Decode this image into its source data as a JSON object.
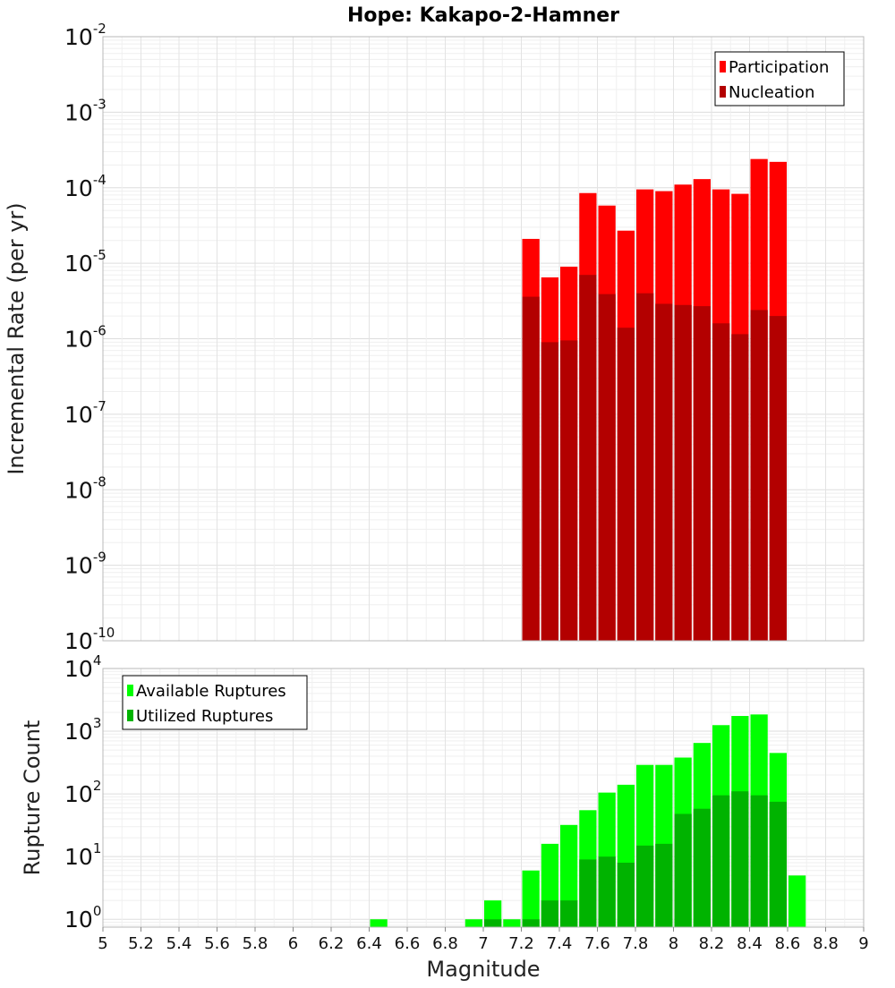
{
  "chart_data": [
    {
      "type": "bar",
      "title": "Hope: Kakapo-2-Hamner",
      "xlabel": "",
      "ylabel": "Incremental Rate (per yr)",
      "xlim": [
        5,
        9
      ],
      "ylim": [
        1e-10,
        0.01
      ],
      "yscale": "log",
      "grid": true,
      "legend_position": "top-right",
      "bar_width": 0.1,
      "x": [
        7.25,
        7.35,
        7.45,
        7.55,
        7.65,
        7.75,
        7.85,
        7.95,
        8.05,
        8.15,
        8.25,
        8.35,
        8.45,
        8.55
      ],
      "series": [
        {
          "name": "Participation",
          "color": "#ff0000",
          "values": [
            2.1e-05,
            6.5e-06,
            9e-06,
            8.5e-05,
            5.8e-05,
            2.7e-05,
            9.5e-05,
            9e-05,
            0.00011,
            0.00013,
            9.5e-05,
            8.3e-05,
            0.00024,
            0.00022
          ]
        },
        {
          "name": "Nucleation",
          "color": "#b30000",
          "values": [
            3.6e-06,
            9e-07,
            9.5e-07,
            7e-06,
            3.9e-06,
            1.4e-06,
            4e-06,
            2.9e-06,
            2.8e-06,
            2.7e-06,
            1.6e-06,
            1.15e-06,
            2.4e-06,
            2e-06
          ]
        }
      ]
    },
    {
      "type": "bar",
      "title": "",
      "xlabel": "Magnitude",
      "ylabel": "Rupture Count",
      "xlim": [
        5,
        9
      ],
      "ylim": [
        0.75,
        10000.0
      ],
      "yscale": "log",
      "grid": true,
      "legend_position": "top-left",
      "bar_width": 0.1,
      "xticks": [
        "5",
        "5.2",
        "5.4",
        "5.6",
        "5.8",
        "6",
        "6.2",
        "6.4",
        "6.6",
        "6.8",
        "7",
        "7.2",
        "7.4",
        "7.6",
        "7.8",
        "8",
        "8.2",
        "8.4",
        "8.6",
        "8.8",
        "9"
      ],
      "series": [
        {
          "name": "Available Ruptures",
          "color": "#00ff00",
          "x": [
            6.45,
            6.95,
            7.05,
            7.15,
            7.25,
            7.35,
            7.45,
            7.55,
            7.65,
            7.75,
            7.85,
            7.95,
            8.05,
            8.15,
            8.25,
            8.35,
            8.45,
            8.55,
            8.65
          ],
          "values": [
            1,
            1,
            2,
            1,
            6,
            16,
            32,
            55,
            105,
            140,
            290,
            290,
            380,
            650,
            1250,
            1750,
            1850,
            450,
            5
          ]
        },
        {
          "name": "Utilized Ruptures",
          "color": "#00b300",
          "x": [
            7.05,
            7.25,
            7.35,
            7.45,
            7.55,
            7.65,
            7.75,
            7.85,
            7.95,
            8.05,
            8.15,
            8.25,
            8.35,
            8.45,
            8.55
          ],
          "values": [
            1,
            1,
            2,
            2,
            9,
            10,
            8,
            15,
            16,
            48,
            58,
            95,
            110,
            95,
            75
          ]
        }
      ]
    }
  ]
}
